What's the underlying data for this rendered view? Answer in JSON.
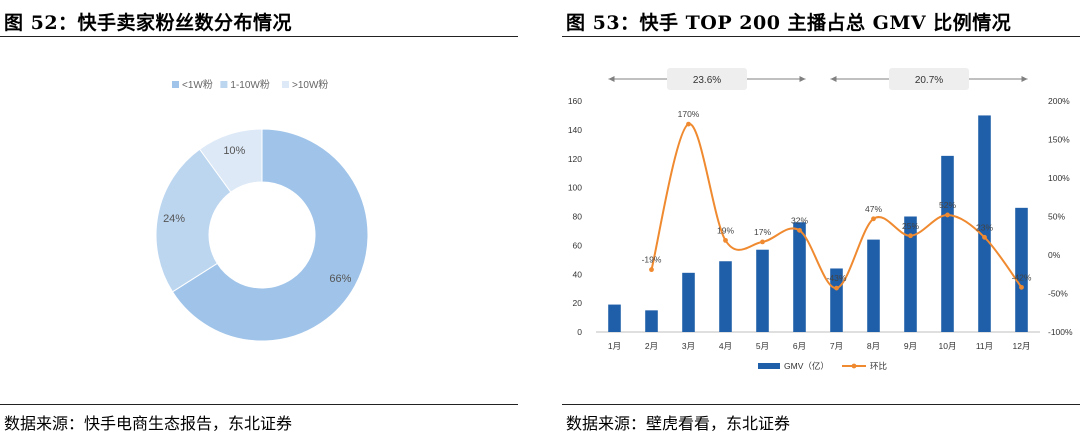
{
  "left": {
    "title": "图  52：快手卖家粉丝数分布情况",
    "source": "数据来源：快手电商生态报告，东北证券",
    "chart_data": {
      "type": "pie",
      "style": "donut",
      "labels": [
        "<1W粉",
        "1-10W粉",
        ">10W粉"
      ],
      "values": [
        66,
        24,
        10
      ],
      "value_labels": [
        "66%",
        "24%",
        "10%"
      ],
      "colors": [
        "#a0c4e9",
        "#bcd6f0",
        "#dde9f7"
      ],
      "legend_position": "top"
    }
  },
  "right": {
    "title": "图  53：快手 TOP 200 主播占总 GMV 比例情况",
    "source": "数据来源：壁虎看看，东北证券",
    "chart_data": {
      "type": "bar",
      "categories": [
        "1月",
        "2月",
        "3月",
        "4月",
        "5月",
        "6月",
        "7月",
        "8月",
        "9月",
        "10月",
        "11月",
        "12月"
      ],
      "series": [
        {
          "name": "GMV（亿）",
          "type": "bar",
          "axis": "left",
          "color": "#1f5ea8",
          "values": [
            19,
            15,
            41,
            49,
            57,
            76,
            44,
            64,
            80,
            122,
            150,
            86
          ]
        },
        {
          "name": "环比",
          "type": "line",
          "axis": "right",
          "color": "#f08a30",
          "values": [
            null,
            -19,
            170,
            19,
            17,
            32,
            -43,
            47,
            25,
            52,
            23,
            -42
          ],
          "labels": [
            "",
            "-19%",
            "170%",
            "19%",
            "17%",
            "32%",
            "-43%",
            "47%",
            "25%",
            "52%",
            "23%",
            "-42%"
          ]
        }
      ],
      "ylim_left": [
        0,
        160
      ],
      "yticks_left": [
        "0",
        "20",
        "40",
        "60",
        "80",
        "100",
        "120",
        "140",
        "160"
      ],
      "ylim_right": [
        -100,
        200
      ],
      "yticks_right": [
        "-100%",
        "-50%",
        "0%",
        "50%",
        "100%",
        "150%",
        "200%"
      ],
      "annotations": [
        {
          "text": "23.6%",
          "from": "1月",
          "to": "6月"
        },
        {
          "text": "20.7%",
          "from": "7月",
          "to": "12月"
        }
      ],
      "legend_position": "bottom",
      "grid": false
    }
  }
}
